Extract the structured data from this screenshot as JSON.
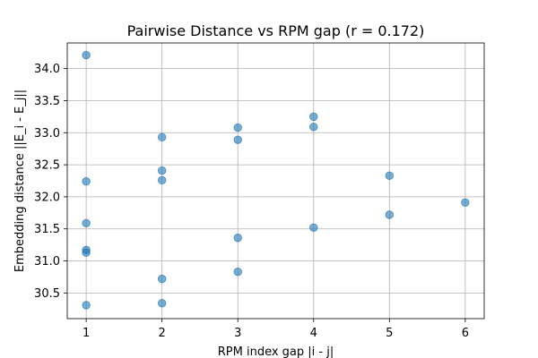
{
  "chart_data": {
    "type": "scatter",
    "title": "Pairwise Distance vs RPM gap (r = 0.172)",
    "xlabel": "RPM index gap |i - j|",
    "ylabel": "Embedding distance ||E_i - E_j||",
    "xlim": [
      0.75,
      6.25
    ],
    "ylim": [
      30.1,
      34.4
    ],
    "x_ticks": [
      1,
      2,
      3,
      4,
      5,
      6
    ],
    "x_tick_labels": [
      "1",
      "2",
      "3",
      "4",
      "5",
      "6"
    ],
    "y_ticks": [
      30.5,
      31.0,
      31.5,
      32.0,
      32.5,
      33.0,
      33.5,
      34.0
    ],
    "y_tick_labels": [
      "30.5",
      "31.0",
      "31.5",
      "32.0",
      "32.5",
      "33.0",
      "33.5",
      "34.0"
    ],
    "grid": true,
    "marker_color": "#1f77b4",
    "marker_alpha": 0.6,
    "points": [
      {
        "x": 1,
        "y": 34.21
      },
      {
        "x": 1,
        "y": 32.24
      },
      {
        "x": 1,
        "y": 31.59
      },
      {
        "x": 1,
        "y": 31.17
      },
      {
        "x": 1,
        "y": 31.13
      },
      {
        "x": 1,
        "y": 30.31
      },
      {
        "x": 2,
        "y": 32.93
      },
      {
        "x": 2,
        "y": 32.41
      },
      {
        "x": 2,
        "y": 32.26
      },
      {
        "x": 2,
        "y": 30.72
      },
      {
        "x": 2,
        "y": 30.34
      },
      {
        "x": 3,
        "y": 33.08
      },
      {
        "x": 3,
        "y": 32.89
      },
      {
        "x": 3,
        "y": 31.36
      },
      {
        "x": 3,
        "y": 30.83
      },
      {
        "x": 4,
        "y": 33.25
      },
      {
        "x": 4,
        "y": 33.09
      },
      {
        "x": 4,
        "y": 31.52
      },
      {
        "x": 5,
        "y": 32.33
      },
      {
        "x": 5,
        "y": 31.72
      },
      {
        "x": 6,
        "y": 31.91
      }
    ]
  }
}
